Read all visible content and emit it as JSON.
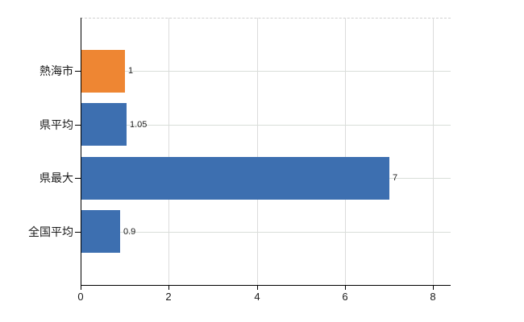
{
  "chart_data": {
    "type": "bar",
    "orientation": "horizontal",
    "title": "",
    "xlabel": "",
    "ylabel": "",
    "categories": [
      "熱海市",
      "県平均",
      "県最大",
      "全国平均"
    ],
    "values": [
      1,
      1.05,
      7,
      0.9
    ],
    "value_labels": [
      "1",
      "1.05",
      "7",
      "0.9"
    ],
    "bar_colors": [
      "#ee8633",
      "#3d6fb0",
      "#3d6fb0",
      "#3d6fb0"
    ],
    "xlim": [
      0,
      8.4
    ],
    "xticks": [
      0,
      2,
      4,
      6,
      8
    ],
    "xtick_labels": [
      "0",
      "2",
      "4",
      "6",
      "8"
    ],
    "grid": true,
    "legend": null
  },
  "colors": {
    "axis": "#000000",
    "grid_horizontal": "#d9ded9",
    "grid_vertical": "#dcdcdc",
    "top_border": "#d0d0d0",
    "category_label": "#1a1a1a",
    "tick_label": "#1a1a1a",
    "value_label": "#222222",
    "background": "#ffffff"
  }
}
